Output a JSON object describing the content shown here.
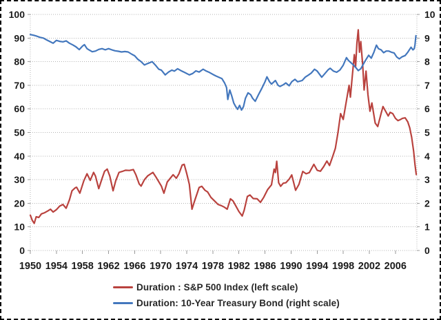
{
  "chart_data": {
    "type": "line",
    "title": "",
    "x_axis": {
      "min": 1950,
      "max": 2009.3,
      "tick_years": [
        1950,
        1954,
        1958,
        1962,
        1966,
        1970,
        1974,
        1978,
        1982,
        1986,
        1990,
        1994,
        1998,
        2002,
        2006
      ]
    },
    "y_axis_left": {
      "min": 0,
      "max": 100,
      "tick_step": 10,
      "ticks": [
        0,
        10,
        20,
        30,
        40,
        50,
        60,
        70,
        80,
        90,
        100
      ]
    },
    "y_axis_right": {
      "min": 0,
      "max": 10,
      "tick_step": 1,
      "ticks": [
        0,
        1,
        2,
        3,
        4,
        5,
        6,
        7,
        8,
        9,
        10
      ]
    },
    "grid": {
      "color": "#b3b3b3",
      "style": "dotted"
    },
    "legend_position": "bottom",
    "series": [
      {
        "name": "Duration : S&P 500 Index (left scale)",
        "axis": "left",
        "color": "#b9423e",
        "points": [
          [
            1950.0,
            15.0
          ],
          [
            1950.3,
            12.8
          ],
          [
            1950.6,
            11.5
          ],
          [
            1950.9,
            14.3
          ],
          [
            1951.3,
            14.0
          ],
          [
            1951.7,
            15.5
          ],
          [
            1952.2,
            16.0
          ],
          [
            1952.7,
            16.8
          ],
          [
            1953.1,
            17.5
          ],
          [
            1953.5,
            16.3
          ],
          [
            1954.0,
            17.3
          ],
          [
            1954.5,
            18.8
          ],
          [
            1955.0,
            19.5
          ],
          [
            1955.5,
            17.9
          ],
          [
            1956.0,
            21.5
          ],
          [
            1956.4,
            25.3
          ],
          [
            1956.9,
            26.6
          ],
          [
            1957.1,
            26.8
          ],
          [
            1957.6,
            24.3
          ],
          [
            1958.2,
            29.5
          ],
          [
            1958.7,
            32.5
          ],
          [
            1959.2,
            29.7
          ],
          [
            1959.7,
            33.1
          ],
          [
            1960.0,
            31.5
          ],
          [
            1960.5,
            26.2
          ],
          [
            1961.0,
            30.5
          ],
          [
            1961.4,
            33.6
          ],
          [
            1961.8,
            34.5
          ],
          [
            1962.2,
            31.5
          ],
          [
            1962.7,
            25.3
          ],
          [
            1963.1,
            29.5
          ],
          [
            1963.6,
            33.1
          ],
          [
            1964.1,
            33.5
          ],
          [
            1964.6,
            34.0
          ],
          [
            1965.2,
            33.9
          ],
          [
            1965.8,
            34.3
          ],
          [
            1966.2,
            32.0
          ],
          [
            1966.7,
            28.2
          ],
          [
            1967.0,
            27.3
          ],
          [
            1967.5,
            30.0
          ],
          [
            1968.0,
            31.6
          ],
          [
            1968.8,
            33.1
          ],
          [
            1969.3,
            31.0
          ],
          [
            1970.1,
            27.3
          ],
          [
            1970.5,
            24.3
          ],
          [
            1971.0,
            29.0
          ],
          [
            1971.9,
            32.1
          ],
          [
            1972.4,
            30.6
          ],
          [
            1972.8,
            32.5
          ],
          [
            1973.3,
            36.2
          ],
          [
            1973.6,
            36.5
          ],
          [
            1974.0,
            32.6
          ],
          [
            1974.4,
            28.0
          ],
          [
            1974.8,
            17.5
          ],
          [
            1975.2,
            21.0
          ],
          [
            1975.9,
            26.7
          ],
          [
            1976.3,
            27.2
          ],
          [
            1976.8,
            25.5
          ],
          [
            1977.2,
            24.8
          ],
          [
            1977.7,
            22.5
          ],
          [
            1978.3,
            20.9
          ],
          [
            1978.8,
            19.5
          ],
          [
            1979.3,
            19.0
          ],
          [
            1979.8,
            18.3
          ],
          [
            1980.2,
            17.5
          ],
          [
            1980.7,
            21.9
          ],
          [
            1981.1,
            21.0
          ],
          [
            1981.5,
            19.0
          ],
          [
            1982.0,
            16.5
          ],
          [
            1982.5,
            14.6
          ],
          [
            1982.8,
            17.0
          ],
          [
            1983.3,
            22.9
          ],
          [
            1983.7,
            23.5
          ],
          [
            1984.2,
            22.0
          ],
          [
            1984.8,
            21.9
          ],
          [
            1985.3,
            20.4
          ],
          [
            1985.8,
            22.5
          ],
          [
            1986.4,
            25.8
          ],
          [
            1987.0,
            27.8
          ],
          [
            1987.4,
            34.5
          ],
          [
            1987.6,
            33.0
          ],
          [
            1987.8,
            37.8
          ],
          [
            1988.1,
            28.7
          ],
          [
            1988.4,
            27.2
          ],
          [
            1988.8,
            28.5
          ],
          [
            1989.2,
            28.7
          ],
          [
            1989.7,
            30.2
          ],
          [
            1990.1,
            32.0
          ],
          [
            1990.7,
            25.5
          ],
          [
            1991.2,
            28.0
          ],
          [
            1991.8,
            33.5
          ],
          [
            1992.3,
            32.5
          ],
          [
            1992.8,
            33.0
          ],
          [
            1993.2,
            35.0
          ],
          [
            1993.5,
            36.5
          ],
          [
            1994.0,
            34.0
          ],
          [
            1994.5,
            33.6
          ],
          [
            1995.0,
            35.5
          ],
          [
            1995.5,
            37.9
          ],
          [
            1995.9,
            36.0
          ],
          [
            1996.4,
            40.0
          ],
          [
            1996.8,
            43.3
          ],
          [
            1997.2,
            50.0
          ],
          [
            1997.6,
            58.0
          ],
          [
            1998.0,
            55.5
          ],
          [
            1998.4,
            62.0
          ],
          [
            1998.9,
            70.0
          ],
          [
            1999.1,
            65.0
          ],
          [
            1999.4,
            74.0
          ],
          [
            1999.7,
            83.0
          ],
          [
            1999.9,
            78.0
          ],
          [
            2000.1,
            88.0
          ],
          [
            2000.3,
            93.5
          ],
          [
            2000.5,
            84.0
          ],
          [
            2000.7,
            88.5
          ],
          [
            2001.0,
            78.0
          ],
          [
            2001.2,
            68.0
          ],
          [
            2001.5,
            76.0
          ],
          [
            2001.8,
            66.0
          ],
          [
            2002.1,
            59.0
          ],
          [
            2002.4,
            62.5
          ],
          [
            2002.9,
            54.0
          ],
          [
            2003.3,
            52.5
          ],
          [
            2003.8,
            58.0
          ],
          [
            2004.1,
            61.0
          ],
          [
            2004.5,
            59.0
          ],
          [
            2004.9,
            57.0
          ],
          [
            2005.2,
            58.5
          ],
          [
            2005.6,
            58.0
          ],
          [
            2006.0,
            56.0
          ],
          [
            2006.4,
            55.0
          ],
          [
            2006.8,
            55.5
          ],
          [
            2007.1,
            56.0
          ],
          [
            2007.5,
            56.2
          ],
          [
            2007.9,
            54.5
          ],
          [
            2008.2,
            52.0
          ],
          [
            2008.5,
            48.0
          ],
          [
            2008.8,
            42.0
          ],
          [
            2009.0,
            36.5
          ],
          [
            2009.2,
            32.2
          ]
        ]
      },
      {
        "name": "Duration: 10-Year Treasury Bond (right scale)",
        "axis": "right",
        "color": "#4377bd",
        "points": [
          [
            1950.0,
            9.15
          ],
          [
            1950.5,
            9.12
          ],
          [
            1951.0,
            9.08
          ],
          [
            1951.5,
            9.03
          ],
          [
            1952.0,
            9.0
          ],
          [
            1952.5,
            8.92
          ],
          [
            1953.0,
            8.85
          ],
          [
            1953.5,
            8.78
          ],
          [
            1954.0,
            8.9
          ],
          [
            1954.5,
            8.86
          ],
          [
            1955.0,
            8.84
          ],
          [
            1955.5,
            8.88
          ],
          [
            1956.0,
            8.78
          ],
          [
            1956.5,
            8.71
          ],
          [
            1957.0,
            8.63
          ],
          [
            1957.5,
            8.51
          ],
          [
            1958.0,
            8.66
          ],
          [
            1958.3,
            8.72
          ],
          [
            1958.7,
            8.55
          ],
          [
            1959.0,
            8.5
          ],
          [
            1959.5,
            8.42
          ],
          [
            1960.0,
            8.45
          ],
          [
            1960.5,
            8.52
          ],
          [
            1961.0,
            8.55
          ],
          [
            1961.5,
            8.5
          ],
          [
            1962.0,
            8.55
          ],
          [
            1962.5,
            8.5
          ],
          [
            1963.0,
            8.46
          ],
          [
            1963.5,
            8.44
          ],
          [
            1964.0,
            8.41
          ],
          [
            1964.5,
            8.43
          ],
          [
            1965.0,
            8.41
          ],
          [
            1965.6,
            8.31
          ],
          [
            1966.0,
            8.25
          ],
          [
            1966.5,
            8.1
          ],
          [
            1967.0,
            8.0
          ],
          [
            1967.5,
            7.86
          ],
          [
            1968.0,
            7.92
          ],
          [
            1968.7,
            8.0
          ],
          [
            1969.2,
            7.85
          ],
          [
            1969.7,
            7.68
          ],
          [
            1970.1,
            7.64
          ],
          [
            1970.7,
            7.44
          ],
          [
            1971.2,
            7.56
          ],
          [
            1971.7,
            7.64
          ],
          [
            1972.1,
            7.6
          ],
          [
            1972.6,
            7.7
          ],
          [
            1973.1,
            7.62
          ],
          [
            1973.7,
            7.54
          ],
          [
            1974.4,
            7.44
          ],
          [
            1974.9,
            7.5
          ],
          [
            1975.4,
            7.61
          ],
          [
            1975.9,
            7.56
          ],
          [
            1976.5,
            7.68
          ],
          [
            1977.0,
            7.6
          ],
          [
            1977.5,
            7.54
          ],
          [
            1978.0,
            7.46
          ],
          [
            1978.5,
            7.39
          ],
          [
            1979.0,
            7.33
          ],
          [
            1979.4,
            7.28
          ],
          [
            1979.8,
            7.1
          ],
          [
            1980.1,
            6.9
          ],
          [
            1980.3,
            6.4
          ],
          [
            1980.6,
            6.8
          ],
          [
            1980.9,
            6.55
          ],
          [
            1981.2,
            6.25
          ],
          [
            1981.5,
            6.1
          ],
          [
            1981.8,
            5.98
          ],
          [
            1982.1,
            6.15
          ],
          [
            1982.4,
            5.95
          ],
          [
            1982.7,
            6.1
          ],
          [
            1983.0,
            6.45
          ],
          [
            1983.4,
            6.68
          ],
          [
            1983.8,
            6.6
          ],
          [
            1984.1,
            6.45
          ],
          [
            1984.5,
            6.32
          ],
          [
            1985.0,
            6.6
          ],
          [
            1985.5,
            6.86
          ],
          [
            1986.0,
            7.15
          ],
          [
            1986.3,
            7.36
          ],
          [
            1986.7,
            7.15
          ],
          [
            1987.0,
            7.05
          ],
          [
            1987.6,
            7.2
          ],
          [
            1988.0,
            7.0
          ],
          [
            1988.3,
            6.95
          ],
          [
            1988.8,
            7.02
          ],
          [
            1989.2,
            7.1
          ],
          [
            1989.7,
            6.98
          ],
          [
            1990.1,
            7.15
          ],
          [
            1990.6,
            7.25
          ],
          [
            1991.0,
            7.15
          ],
          [
            1991.7,
            7.2
          ],
          [
            1992.2,
            7.35
          ],
          [
            1992.7,
            7.44
          ],
          [
            1993.1,
            7.52
          ],
          [
            1993.6,
            7.68
          ],
          [
            1994.0,
            7.6
          ],
          [
            1994.7,
            7.34
          ],
          [
            1995.2,
            7.5
          ],
          [
            1995.7,
            7.66
          ],
          [
            1996.0,
            7.72
          ],
          [
            1996.5,
            7.6
          ],
          [
            1997.0,
            7.55
          ],
          [
            1997.5,
            7.65
          ],
          [
            1998.0,
            7.85
          ],
          [
            1998.5,
            8.17
          ],
          [
            1998.8,
            8.05
          ],
          [
            1999.2,
            7.95
          ],
          [
            1999.6,
            7.85
          ],
          [
            2000.0,
            7.73
          ],
          [
            2000.3,
            7.62
          ],
          [
            2000.7,
            7.7
          ],
          [
            2001.0,
            7.85
          ],
          [
            2001.4,
            8.05
          ],
          [
            2001.9,
            8.27
          ],
          [
            2002.3,
            8.15
          ],
          [
            2002.7,
            8.4
          ],
          [
            2003.1,
            8.7
          ],
          [
            2003.4,
            8.55
          ],
          [
            2003.8,
            8.5
          ],
          [
            2004.2,
            8.38
          ],
          [
            2004.6,
            8.45
          ],
          [
            2005.0,
            8.45
          ],
          [
            2005.4,
            8.4
          ],
          [
            2005.8,
            8.37
          ],
          [
            2006.2,
            8.2
          ],
          [
            2006.6,
            8.12
          ],
          [
            2007.0,
            8.2
          ],
          [
            2007.5,
            8.26
          ],
          [
            2007.9,
            8.4
          ],
          [
            2008.4,
            8.61
          ],
          [
            2008.7,
            8.5
          ],
          [
            2008.9,
            8.55
          ],
          [
            2009.0,
            8.7
          ],
          [
            2009.15,
            9.1
          ]
        ]
      }
    ]
  }
}
